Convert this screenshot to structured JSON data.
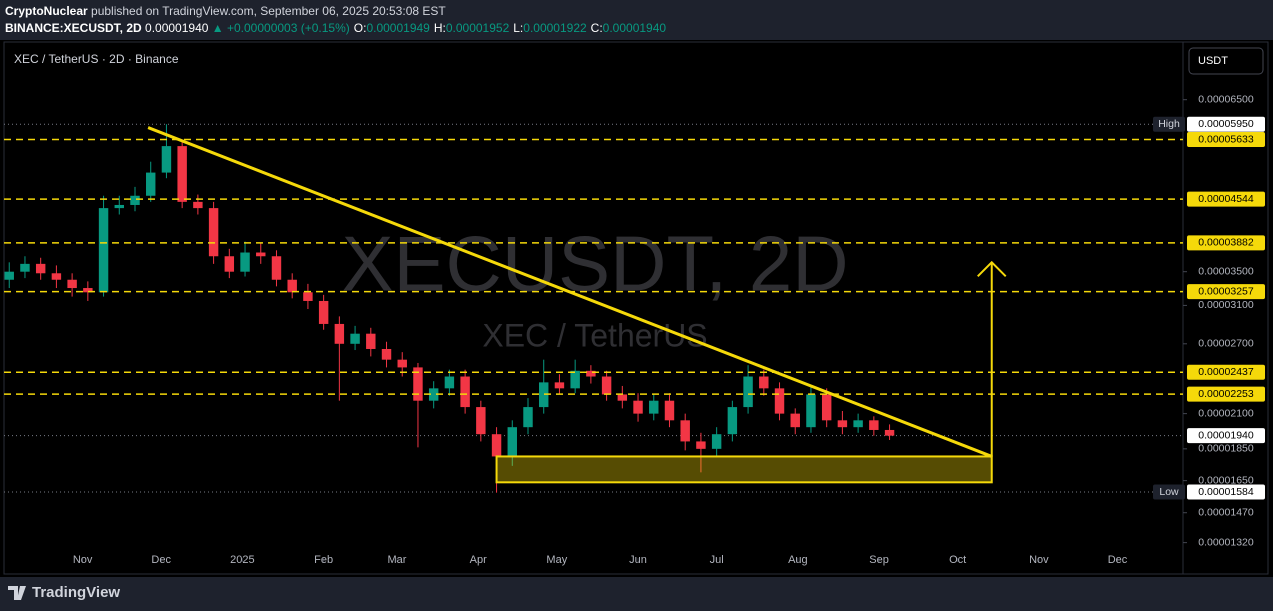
{
  "header": {
    "publisher": "CryptoNuclear",
    "published": "published on TradingView.com, September 06, 2025 20:53:08 EST",
    "symbol": "BINANCE:XECUSDT, 2D",
    "price": "0.00001940",
    "change": "▲ +0.00000003 (+0.15%)",
    "ohlc": [
      [
        "O:",
        "0.00001949"
      ],
      [
        "H:",
        "0.00001952"
      ],
      [
        "L:",
        "0.00001922"
      ],
      [
        "C:",
        "0.00001940"
      ]
    ]
  },
  "chart_data": {
    "type": "candlestick",
    "legend": "XEC / TetherUS · 2D · Binance",
    "currency": "USDT",
    "watermark": "XECUSDT, 2D",
    "watermark_sub": "XEC / TetherUS",
    "log_scale": true,
    "up_color": "#089981",
    "down_color": "#f23645",
    "level_color": "#f5d90a",
    "ylim": [
      1.24e-05,
      8e-05
    ],
    "xlim": [
      -30,
      420
    ],
    "yticks": [
      {
        "value": 6.5e-05,
        "label": "0.00006500"
      },
      {
        "value": 3.5e-05,
        "label": "0.00003500"
      },
      {
        "value": 3.1e-05,
        "label": "0.00003100"
      },
      {
        "value": 2.7e-05,
        "label": "0.00002700"
      },
      {
        "value": 2.1e-05,
        "label": "0.00002100"
      },
      {
        "value": 1.85e-05,
        "label": "0.00001850"
      },
      {
        "value": 1.65e-05,
        "label": "0.00001650"
      },
      {
        "value": 1.47e-05,
        "label": "0.00001470"
      },
      {
        "value": 1.32e-05,
        "label": "0.00001320"
      }
    ],
    "xticks": [
      {
        "value": 0,
        "label": "Nov"
      },
      {
        "value": 30,
        "label": "Dec"
      },
      {
        "value": 61,
        "label": "2025"
      },
      {
        "value": 92,
        "label": "Feb"
      },
      {
        "value": 120,
        "label": "Mar"
      },
      {
        "value": 151,
        "label": "Apr"
      },
      {
        "value": 181,
        "label": "May"
      },
      {
        "value": 212,
        "label": "Jun"
      },
      {
        "value": 242,
        "label": "Jul"
      },
      {
        "value": 273,
        "label": "Aug"
      },
      {
        "value": 304,
        "label": "Sep"
      },
      {
        "value": 334,
        "label": "Oct"
      },
      {
        "value": 365,
        "label": "Nov"
      },
      {
        "value": 395,
        "label": "Dec"
      }
    ],
    "levels": [
      {
        "value": 5.633e-05,
        "label": "0.00005633"
      },
      {
        "value": 4.544e-05,
        "label": "0.00004544"
      },
      {
        "value": 3.882e-05,
        "label": "0.00003882"
      },
      {
        "value": 3.257e-05,
        "label": "0.00003257"
      },
      {
        "value": 2.437e-05,
        "label": "0.00002437"
      },
      {
        "value": 2.253e-05,
        "label": "0.00002253"
      }
    ],
    "high_mark": {
      "name": "High",
      "value": 5.95e-05,
      "label": "0.00005950"
    },
    "low_mark": {
      "name": "Low",
      "value": 1.584e-05,
      "label": "0.00001584"
    },
    "last": {
      "value": 1.94e-05,
      "label": "0.00001940"
    },
    "trendline": {
      "x": [
        25,
        347
      ],
      "y": [
        5.88e-05,
        1.8e-05
      ]
    },
    "zone": {
      "x": [
        158,
        347
      ],
      "y": [
        1.64e-05,
        1.8e-05
      ]
    },
    "arrow": {
      "x": 347,
      "y": [
        1.8e-05,
        3.62e-05
      ]
    },
    "x": [
      -28,
      -22,
      -16,
      -10,
      -4,
      2,
      8,
      14,
      20,
      26,
      32,
      38,
      44,
      50,
      56,
      62,
      68,
      74,
      80,
      86,
      92,
      98,
      104,
      110,
      116,
      122,
      128,
      134,
      140,
      146,
      152,
      158,
      164,
      170,
      176,
      182,
      188,
      194,
      200,
      206,
      212,
      218,
      224,
      230,
      236,
      242,
      248,
      254,
      260,
      266,
      272,
      278,
      284,
      290,
      296,
      302,
      308
    ],
    "open": [
      3.4e-05,
      3.5e-05,
      3.6e-05,
      3.48e-05,
      3.4e-05,
      3.3e-05,
      3.25e-05,
      4.4e-05,
      4.45e-05,
      4.6e-05,
      5e-05,
      5.5e-05,
      4.5e-05,
      4.4e-05,
      3.7e-05,
      3.5e-05,
      3.75e-05,
      3.7e-05,
      3.4e-05,
      3.25e-05,
      3.15e-05,
      2.9e-05,
      2.7e-05,
      2.8e-05,
      2.65e-05,
      2.55e-05,
      2.48e-05,
      2.2e-05,
      2.3e-05,
      2.4e-05,
      2.15e-05,
      1.95e-05,
      1.8e-05,
      2e-05,
      2.15e-05,
      2.35e-05,
      2.3e-05,
      2.45e-05,
      2.4e-05,
      2.25e-05,
      2.2e-05,
      2.1e-05,
      2.2e-05,
      2.05e-05,
      1.9e-05,
      1.85e-05,
      1.95e-05,
      2.15e-05,
      2.4e-05,
      2.3e-05,
      2.1e-05,
      2e-05,
      2.25e-05,
      2.05e-05,
      2e-05,
      2.05e-05,
      1.98e-05
    ],
    "high": [
      3.62e-05,
      3.7e-05,
      3.68e-05,
      3.58e-05,
      3.48e-05,
      3.38e-05,
      4.6e-05,
      4.6e-05,
      4.75e-05,
      5.2e-05,
      5.95e-05,
      5.6e-05,
      4.62e-05,
      4.5e-05,
      3.8e-05,
      3.9e-05,
      3.88e-05,
      3.78e-05,
      3.48e-05,
      3.35e-05,
      3.22e-05,
      2.98e-05,
      2.88e-05,
      2.86e-05,
      2.72e-05,
      2.62e-05,
      2.52e-05,
      2.36e-05,
      2.46e-05,
      2.46e-05,
      2.2e-05,
      2e-05,
      2.05e-05,
      2.22e-05,
      2.55e-05,
      2.42e-05,
      2.55e-05,
      2.5e-05,
      2.45e-05,
      2.32e-05,
      2.26e-05,
      2.25e-05,
      2.26e-05,
      2.1e-05,
      1.96e-05,
      2e-05,
      2.2e-05,
      2.5e-05,
      2.46e-05,
      2.35e-05,
      2.14e-05,
      2.32e-05,
      2.3e-05,
      2.12e-05,
      2.1e-05,
      2.08e-05,
      2.02e-05
    ],
    "low": [
      3.3e-05,
      3.42e-05,
      3.4e-05,
      3.3e-05,
      3.2e-05,
      3.15e-05,
      3.2e-05,
      4.3e-05,
      4.35e-05,
      4.5e-05,
      4.9e-05,
      4.4e-05,
      4.3e-05,
      3.6e-05,
      3.42e-05,
      3.44e-05,
      3.6e-05,
      3.32e-05,
      3.18e-05,
      3.06e-05,
      2.84e-05,
      2.2e-05,
      2.64e-05,
      2.58e-05,
      2.48e-05,
      2.4e-05,
      1.86e-05,
      2.14e-05,
      2.24e-05,
      2.1e-05,
      1.9e-05,
      1.58e-05,
      1.74e-05,
      1.95e-05,
      2.1e-05,
      2.25e-05,
      2.26e-05,
      2.34e-05,
      2.2e-05,
      2.14e-05,
      2.04e-05,
      2.05e-05,
      2e-05,
      1.84e-05,
      1.7e-05,
      1.8e-05,
      1.9e-05,
      2.1e-05,
      2.24e-05,
      2.05e-05,
      1.95e-05,
      1.96e-05,
      2e-05,
      1.95e-05,
      1.96e-05,
      1.94e-05,
      1.91e-05
    ],
    "close": [
      3.5e-05,
      3.6e-05,
      3.48e-05,
      3.4e-05,
      3.3e-05,
      3.25e-05,
      4.4e-05,
      4.45e-05,
      4.6e-05,
      5e-05,
      5.5e-05,
      4.5e-05,
      4.4e-05,
      3.7e-05,
      3.5e-05,
      3.75e-05,
      3.7e-05,
      3.4e-05,
      3.25e-05,
      3.15e-05,
      2.9e-05,
      2.7e-05,
      2.8e-05,
      2.65e-05,
      2.55e-05,
      2.48e-05,
      2.2e-05,
      2.3e-05,
      2.4e-05,
      2.15e-05,
      1.95e-05,
      1.8e-05,
      2e-05,
      2.15e-05,
      2.35e-05,
      2.3e-05,
      2.45e-05,
      2.4e-05,
      2.25e-05,
      2.2e-05,
      2.1e-05,
      2.2e-05,
      2.05e-05,
      1.9e-05,
      1.85e-05,
      1.95e-05,
      2.15e-05,
      2.4e-05,
      2.3e-05,
      2.1e-05,
      2e-05,
      2.25e-05,
      2.05e-05,
      2e-05,
      2.05e-05,
      1.98e-05,
      1.94e-05
    ]
  },
  "footer": {
    "brand": "TradingView"
  }
}
